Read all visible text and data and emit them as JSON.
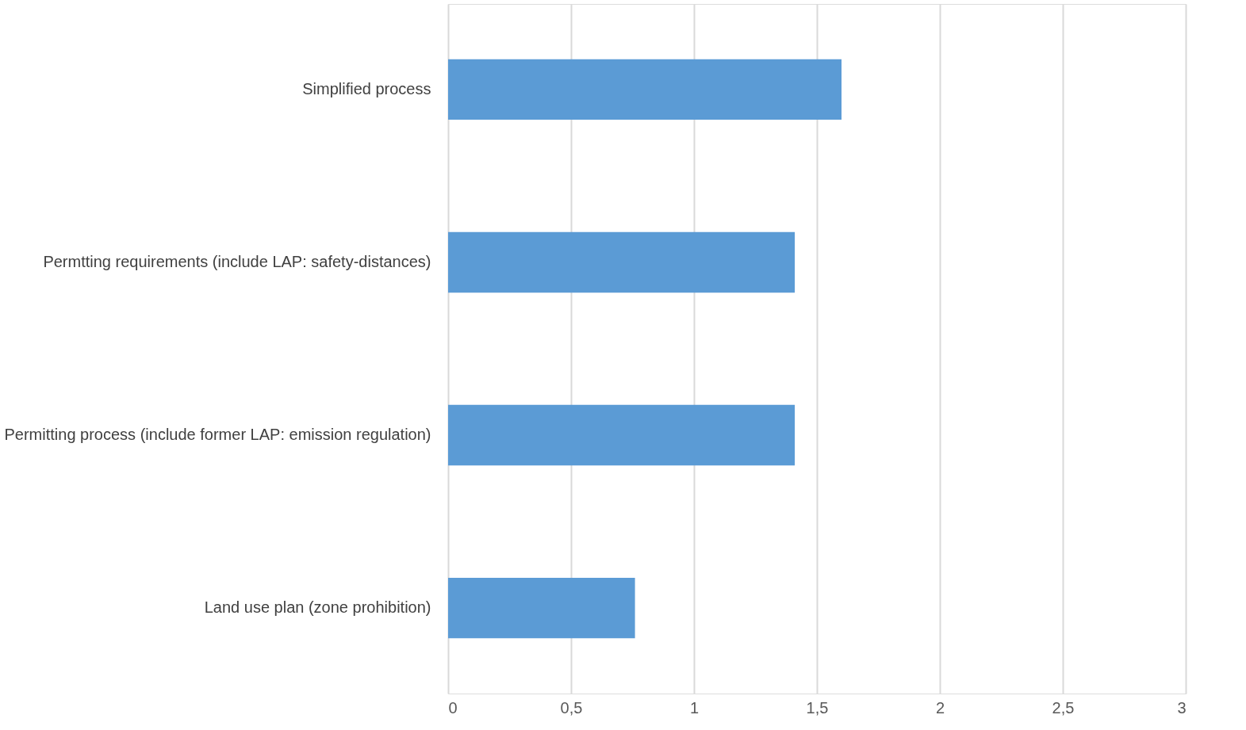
{
  "chart_data": {
    "type": "bar",
    "orientation": "horizontal",
    "categories": [
      "Simplified process",
      "Permtting requirements (include LAP: safety-distances)",
      "Permitting process (include former LAP: emission regulation)",
      "Land use plan (zone prohibition)"
    ],
    "values": [
      1.6,
      1.41,
      1.41,
      0.76
    ],
    "color": "#5b9bd5",
    "xlim": [
      0,
      3
    ],
    "xticks": [
      0,
      {
        "value": 0.5,
        "label": "0,5"
      },
      1,
      {
        "value": 1.5,
        "label": "1,5"
      },
      2,
      {
        "value": 2.5,
        "label": "2,5"
      },
      3
    ],
    "grid": "x"
  }
}
